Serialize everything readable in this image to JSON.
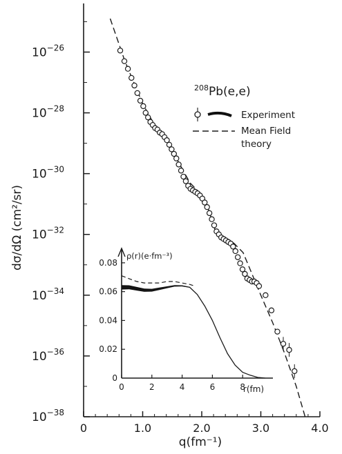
{
  "chart_data": [
    {
      "type": "scatter",
      "title": "208Pb(e,e)",
      "title_parts": {
        "mass": "208",
        "rest": "Pb(e,e)"
      },
      "xlabel": "q(fm⁻¹)",
      "ylabel": "dσ/dΩ (cm²/sr)",
      "y_scale": "log",
      "xlim": [
        0,
        4.0
      ],
      "ylim_log10": [
        -38,
        -24.4
      ],
      "x_ticks": [
        {
          "value": 0,
          "label": "0"
        },
        {
          "value": 1.0,
          "label": "1.0"
        },
        {
          "value": 2.0,
          "label": "2.0"
        },
        {
          "value": 3.0,
          "label": "3.0"
        },
        {
          "value": 4.0,
          "label": "4.0"
        }
      ],
      "y_ticks": [
        {
          "exp": -26,
          "label_base": "10",
          "label_exp": "−26"
        },
        {
          "exp": -28,
          "label_base": "10",
          "label_exp": "−28"
        },
        {
          "exp": -30,
          "label_base": "10",
          "label_exp": "−30"
        },
        {
          "exp": -32,
          "label_base": "10",
          "label_exp": "−32"
        },
        {
          "exp": -34,
          "label_base": "10",
          "label_exp": "−34"
        },
        {
          "exp": -36,
          "label_base": "10",
          "label_exp": "−36"
        },
        {
          "exp": -38,
          "label_base": "10",
          "label_exp": "−38"
        }
      ],
      "legend": {
        "placement": "right",
        "entries": [
          {
            "label": "Experiment",
            "style": "points"
          },
          {
            "label": "Mean Field\ntheory",
            "label_lines": [
              "Mean Field",
              "theory"
            ],
            "style": "dashed"
          }
        ]
      },
      "series": [
        {
          "name": "Experiment",
          "style": "open-circles",
          "x": [
            0.62,
            0.69,
            0.75,
            0.81,
            0.86,
            0.91,
            0.96,
            1.01,
            1.05,
            1.09,
            1.13,
            1.17,
            1.21,
            1.25,
            1.29,
            1.33,
            1.37,
            1.41,
            1.45,
            1.49,
            1.53,
            1.57,
            1.61,
            1.65,
            1.69,
            1.73,
            1.77,
            1.81,
            1.85,
            1.89,
            1.93,
            1.97,
            2.01,
            2.05,
            2.09,
            2.13,
            2.17,
            2.21,
            2.25,
            2.29,
            2.33,
            2.37,
            2.41,
            2.45,
            2.49,
            2.53,
            2.57,
            2.61,
            2.65,
            2.69,
            2.73,
            2.77,
            2.81,
            2.85,
            2.89,
            2.93,
            2.97,
            3.08,
            3.18,
            3.28,
            3.38,
            3.48,
            3.57
          ],
          "y_log10": [
            -25.95,
            -26.3,
            -26.55,
            -26.85,
            -27.1,
            -27.35,
            -27.6,
            -27.78,
            -28.0,
            -28.15,
            -28.3,
            -28.4,
            -28.5,
            -28.55,
            -28.65,
            -28.7,
            -28.8,
            -28.9,
            -29.05,
            -29.2,
            -29.35,
            -29.5,
            -29.7,
            -29.9,
            -30.1,
            -30.25,
            -30.4,
            -30.5,
            -30.55,
            -30.6,
            -30.65,
            -30.72,
            -30.82,
            -30.95,
            -31.1,
            -31.3,
            -31.5,
            -31.7,
            -31.9,
            -32.0,
            -32.1,
            -32.15,
            -32.2,
            -32.25,
            -32.3,
            -32.4,
            -32.55,
            -32.75,
            -32.95,
            -33.15,
            -33.3,
            -33.45,
            -33.5,
            -33.55,
            -33.55,
            -33.6,
            -33.7,
            -34.0,
            -34.5,
            -35.2,
            -35.6,
            -35.8,
            -36.5
          ]
        },
        {
          "name": "Mean Field theory",
          "style": "dashed",
          "x": [
            0.45,
            0.7,
            1.0,
            1.2,
            1.4,
            1.6,
            1.8,
            1.95,
            2.1,
            2.25,
            2.4,
            2.55,
            2.7,
            2.85,
            3.0,
            3.2,
            3.4,
            3.6,
            3.75
          ],
          "y_log10": [
            -24.9,
            -26.3,
            -27.7,
            -28.4,
            -28.9,
            -29.6,
            -30.3,
            -30.6,
            -31.1,
            -32.0,
            -32.1,
            -32.3,
            -32.6,
            -33.3,
            -34.0,
            -34.9,
            -35.9,
            -37.0,
            -38.0
          ]
        }
      ]
    },
    {
      "type": "line",
      "ylabel": "ρ(r)(e·fm⁻³)",
      "xlabel": "r(fm)",
      "xlim": [
        0,
        10
      ],
      "ylim": [
        0,
        0.09
      ],
      "x_ticks": [
        "0",
        "2",
        "4",
        "6",
        "8"
      ],
      "y_ticks": [
        "0.08",
        "0.06",
        "0.04",
        "0.02",
        "0"
      ],
      "series": [
        {
          "name": "Experiment",
          "style": "solid",
          "x": [
            0,
            0.5,
            1,
            1.5,
            2,
            2.5,
            3,
            3.5,
            4,
            4.5,
            5,
            5.5,
            6,
            6.5,
            7,
            7.5,
            8,
            8.5,
            9,
            9.5
          ],
          "y": [
            0.063,
            0.063,
            0.062,
            0.061,
            0.061,
            0.062,
            0.063,
            0.064,
            0.064,
            0.063,
            0.058,
            0.05,
            0.04,
            0.028,
            0.017,
            0.009,
            0.004,
            0.002,
            0.0005,
            0.0
          ]
        },
        {
          "name": "Mean Field theory",
          "style": "dashed",
          "x": [
            0,
            0.5,
            1,
            1.5,
            2,
            2.5,
            3,
            3.5,
            4,
            4.5,
            4.8
          ],
          "y": [
            0.071,
            0.069,
            0.067,
            0.066,
            0.066,
            0.066,
            0.067,
            0.067,
            0.066,
            0.065,
            0.064
          ]
        }
      ]
    }
  ]
}
